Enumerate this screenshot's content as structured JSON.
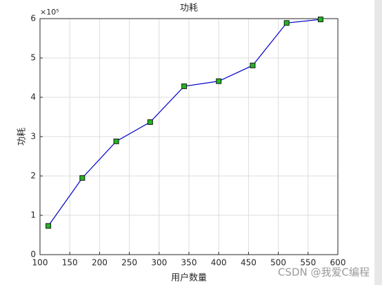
{
  "chart_data": {
    "type": "line",
    "title": "功耗",
    "x_label": "用户数量",
    "y_label": "功耗",
    "y_multiplier": "×10⁵",
    "x": [
      114,
      171,
      228,
      285,
      342,
      400,
      457,
      514,
      571
    ],
    "series": [
      {
        "name": "功耗",
        "color": "#0000c8",
        "marker_color": "#22b322",
        "values": [
          0.73,
          1.95,
          2.88,
          3.37,
          4.28,
          4.41,
          4.81,
          5.89,
          5.98
        ]
      }
    ],
    "xlim": [
      100,
      600
    ],
    "xticks": [
      100,
      150,
      200,
      250,
      300,
      350,
      400,
      450,
      500,
      550,
      600
    ],
    "ylim": [
      0,
      6
    ],
    "yticks": [
      0,
      1,
      2,
      3,
      4,
      5,
      6
    ],
    "grid": true,
    "watermark": "CSDN @我爱C编程"
  }
}
